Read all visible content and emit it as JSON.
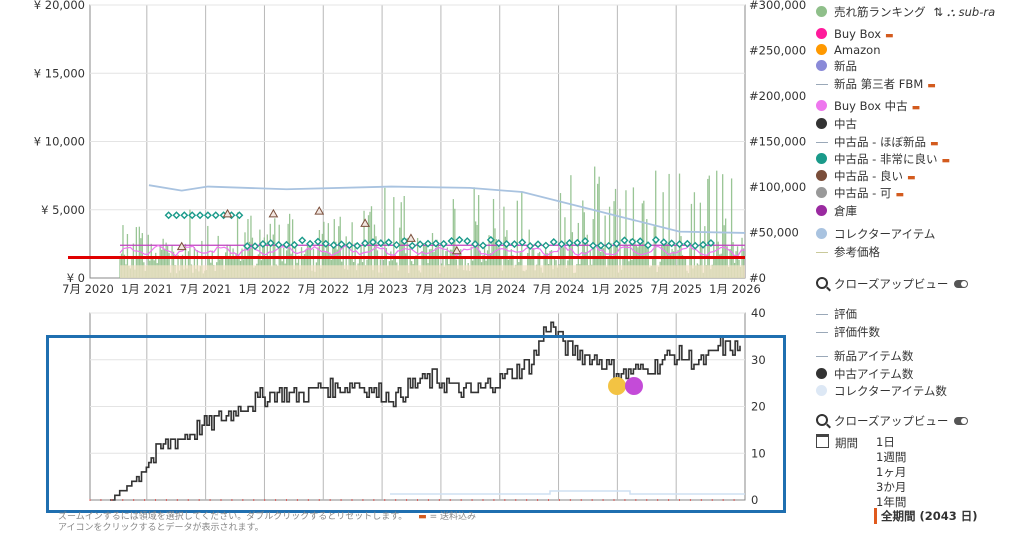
{
  "chart_data": [
    {
      "type": "line",
      "name": "price-and-rank",
      "x_ticks": [
        "7月 2020",
        "1月 2021",
        "7月 2021",
        "1月 2022",
        "7月 2022",
        "1月 2023",
        "7月 2023",
        "1月 2024",
        "7月 2024",
        "1月 2025",
        "7月 2025",
        "1月 2026"
      ],
      "y_left_ticks": [
        "¥ 0",
        "¥ 5,000",
        "¥ 10,000",
        "¥ 15,000",
        "¥ 20,000"
      ],
      "y_left_values": [
        0,
        5000,
        10000,
        15000,
        20000
      ],
      "y_right_ticks": [
        "#0",
        "#50,000",
        "#100,000",
        "#150,000",
        "#200,000",
        "#250,000",
        "#300,000"
      ],
      "y_right_values": [
        0,
        50000,
        100000,
        150000,
        200000,
        250000,
        300000
      ],
      "ylim_left": [
        0,
        20000
      ],
      "ylim_right": [
        0,
        300000
      ],
      "series": [
        {
          "name": "売れ筋ランキング",
          "axis": "right",
          "approx_range": [
            5000,
            150000
          ]
        },
        {
          "name": "Buy Box 中古",
          "axis": "left",
          "approx_values": [
            2300,
            2200,
            2000,
            1800,
            1700
          ]
        },
        {
          "name": "コレクターアイテム",
          "axis": "left",
          "approx_values": [
            6800,
            6400,
            6700,
            6500,
            6700,
            6600,
            6300,
            3400,
            3300
          ]
        },
        {
          "name": "新品 第三者 FBM",
          "axis": "left",
          "approx_values": [
            2400,
            2400,
            2400,
            2400
          ]
        },
        {
          "name": "中古品 - 非常に良い",
          "axis": "left",
          "approx_values": [
            5500,
            4600,
            2200,
            2400,
            2600,
            2500,
            2400,
            2500
          ]
        },
        {
          "name": "中古品 - 良い",
          "axis": "left",
          "approx_values": [
            2300,
            4700,
            4700,
            4900,
            4000,
            2900,
            2000
          ]
        }
      ],
      "annotations": [
        {
          "type": "hline",
          "color": "#e00000",
          "y": 1500
        }
      ]
    },
    {
      "type": "line",
      "name": "offer-count",
      "y_ticks": [
        "0",
        "10",
        "20",
        "30",
        "40"
      ],
      "y_values": [
        0,
        10,
        20,
        30,
        40
      ],
      "ylim": [
        0,
        40
      ],
      "series": [
        {
          "name": "中古アイテム数",
          "approx_values": [
            0,
            3,
            8,
            12,
            14,
            16,
            18,
            20,
            22,
            23,
            22,
            24,
            24,
            25,
            23,
            22,
            25,
            26,
            24,
            23,
            25,
            27,
            29,
            38,
            32,
            31,
            29,
            27,
            28,
            30,
            31,
            29,
            33,
            32
          ]
        }
      ]
    }
  ],
  "legend": {
    "items": [
      {
        "label": "売れ筋ランキング",
        "color": "#8fbf8a",
        "kind": "dot",
        "extra": "sub-ra"
      },
      {
        "label": "Buy Box",
        "color": "#ff1a9b",
        "kind": "dot",
        "truck": true
      },
      {
        "label": "Amazon",
        "color": "#ff9900",
        "kind": "dot"
      },
      {
        "label": "新品",
        "color": "#8a8ad8",
        "kind": "dot"
      },
      {
        "label": "新品 第三者 FBM",
        "color": "#9aa8b8",
        "kind": "dash",
        "truck": true
      },
      {
        "label": "Buy Box 中古",
        "color": "#ee77ee",
        "kind": "dot",
        "truck": true
      },
      {
        "label": "中古",
        "color": "#333333",
        "kind": "dot"
      },
      {
        "label": "中古品 - ほぼ新品",
        "color": "#9aa8b8",
        "kind": "dash",
        "truck": true
      },
      {
        "label": "中古品 - 非常に良い",
        "color": "#1a9a8a",
        "kind": "dot",
        "truck": true
      },
      {
        "label": "中古品 - 良い",
        "color": "#7a4e3a",
        "kind": "dot",
        "truck": true
      },
      {
        "label": "中古品 - 可",
        "color": "#999999",
        "kind": "dot",
        "truck": true
      },
      {
        "label": "倉庫",
        "color": "#9a2aa0",
        "kind": "dot"
      },
      {
        "label": "コレクターアイテム",
        "color": "#a9c3e0",
        "kind": "dot"
      },
      {
        "label": "参考価格",
        "color": "#c9c99a",
        "kind": "dash"
      }
    ],
    "closeup": "クローズアップビュー",
    "items2": [
      {
        "label": "評価",
        "kind": "dash"
      },
      {
        "label": "評価件数",
        "kind": "dash"
      },
      {
        "label": "新品アイテム数",
        "kind": "dash"
      },
      {
        "label": "中古アイテム数",
        "kind": "dot",
        "color": "#333333"
      },
      {
        "label": "コレクターアイテム数",
        "kind": "dot",
        "color": "#dde8f5"
      }
    ],
    "closeup2": "クローズアップビュー",
    "period_label": "期間",
    "periods": [
      "1日",
      "1週間",
      "1ヶ月",
      "3か月",
      "1年間",
      "全期間 (2043 日)"
    ]
  },
  "footnote": {
    "line1": "ズームインするには領域を選択してください。ダブルクリックするとリセットします。",
    "line1b": "= 送料込み",
    "line2": "アイコンをクリックするとデータが表示されます。"
  }
}
